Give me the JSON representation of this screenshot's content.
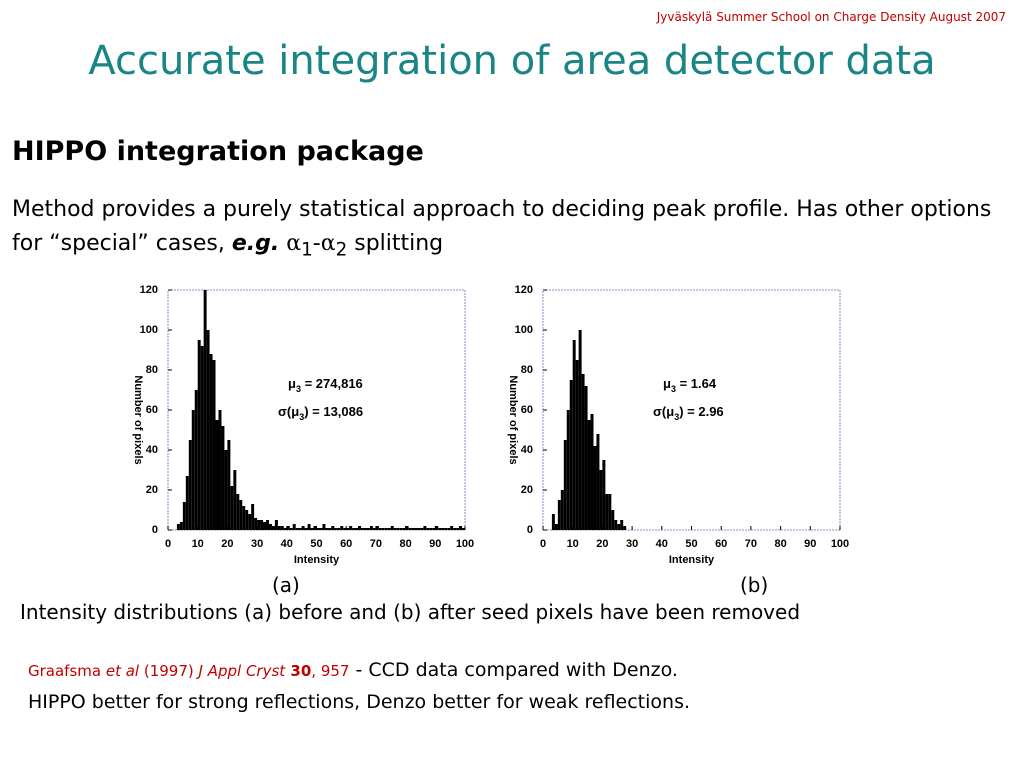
{
  "header": "Jyväskylä Summer School  on Charge Density August 2007",
  "title": "Accurate integration of area detector data",
  "subtitle": "HIPPO integration package",
  "paragraph": [
    "Method provides a purely statistical approach to deciding peak profile. Has other options for “special” cases, ",
    "e.g.",
    " ",
    "α",
    "1",
    "-",
    "α",
    "2",
    " splitting"
  ],
  "figure_caption": "Intensity distributions (a) before and (b) after seed pixels have been removed",
  "reference": {
    "author": "Graafsma ",
    "etal": "et al",
    "year": " (1997) ",
    "journal": "J Appl Cryst",
    "volume": " 30",
    "pages": ", 957",
    "note": " - CCD data compared with Denzo.",
    "line2": "HIPPO better for strong reflections, Denzo better for weak reflections."
  },
  "chart_data": [
    {
      "type": "histogram",
      "caption": "(a)",
      "x_label": "Intensity",
      "y_label": "Number of pixels",
      "color": "#000000",
      "annotations": [
        [
          "μ",
          "3",
          " = 274,816"
        ],
        [
          "σ(μ",
          "3",
          ")  =  13,086"
        ]
      ],
      "xlim": [
        0,
        100
      ],
      "xticks": [
        0,
        10,
        20,
        30,
        40,
        50,
        60,
        70,
        80,
        90,
        100
      ],
      "ylim": [
        0,
        120
      ],
      "yticks": [
        0,
        20,
        40,
        60,
        80,
        100,
        120
      ],
      "bins": [
        3,
        4,
        5,
        6,
        7,
        8,
        9,
        10,
        11,
        12,
        13,
        14,
        15,
        16,
        17,
        18,
        19,
        20,
        21,
        22,
        23,
        24,
        25,
        26,
        27,
        28,
        29,
        30,
        31,
        32,
        33,
        34,
        35,
        36,
        37,
        38,
        39,
        40,
        41,
        42,
        43,
        44,
        45,
        46,
        47,
        48,
        49,
        50,
        51,
        52,
        53,
        54,
        55,
        56,
        57,
        58,
        59,
        60,
        61,
        62,
        63,
        64,
        65,
        66,
        67,
        68,
        69,
        70,
        71,
        72,
        73,
        74,
        75,
        76,
        77,
        78,
        79,
        80,
        81,
        82,
        83,
        84,
        85,
        86,
        87,
        88,
        89,
        90,
        91,
        92,
        93,
        94,
        95,
        96,
        97,
        98,
        99,
        100
      ],
      "values": [
        3,
        4,
        14,
        27,
        45,
        60,
        70,
        95,
        92,
        120,
        100,
        88,
        85,
        55,
        60,
        52,
        40,
        45,
        22,
        30,
        18,
        15,
        12,
        10,
        8,
        13,
        6,
        5,
        5,
        4,
        5,
        3,
        2,
        5,
        2,
        2,
        1,
        2,
        1,
        3,
        1,
        1,
        2,
        1,
        3,
        1,
        2,
        1,
        1,
        3,
        1,
        1,
        2,
        1,
        1,
        2,
        1,
        1,
        2,
        1,
        1,
        2,
        1,
        1,
        1,
        2,
        1,
        2,
        1,
        1,
        1,
        1,
        2,
        1,
        1,
        1,
        1,
        2,
        1,
        1,
        1,
        1,
        1,
        2,
        1,
        1,
        1,
        2,
        1,
        1,
        1,
        1,
        2,
        1,
        1,
        2,
        1
      ]
    },
    {
      "type": "histogram",
      "caption": "(b)",
      "x_label": "Intensity",
      "y_label": "Number of pixels",
      "color": "#000000",
      "annotations": [
        [
          "μ",
          "3",
          " = 1.64"
        ],
        [
          "σ(μ",
          "3",
          ") = 2.96"
        ]
      ],
      "xlim": [
        0,
        100
      ],
      "xticks": [
        0,
        10,
        20,
        30,
        40,
        50,
        60,
        70,
        80,
        90,
        100
      ],
      "ylim": [
        0,
        120
      ],
      "yticks": [
        0,
        20,
        40,
        60,
        80,
        100,
        120
      ],
      "bins": [
        3,
        4,
        5,
        6,
        7,
        8,
        9,
        10,
        11,
        12,
        13,
        14,
        15,
        16,
        17,
        18,
        19,
        20,
        21,
        22,
        23,
        24,
        25,
        26,
        27,
        28
      ],
      "values": [
        8,
        3,
        15,
        20,
        45,
        60,
        75,
        95,
        85,
        100,
        78,
        72,
        55,
        58,
        42,
        48,
        30,
        35,
        18,
        18,
        10,
        5,
        3,
        5,
        2
      ]
    }
  ]
}
